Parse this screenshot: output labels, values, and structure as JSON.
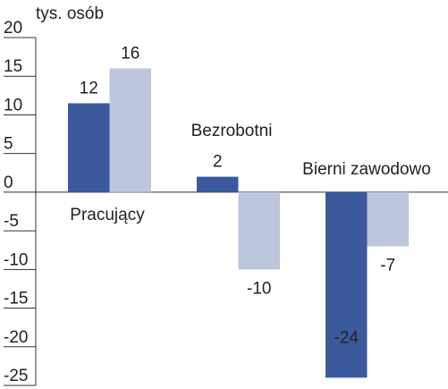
{
  "chart_data": {
    "type": "bar",
    "y_label": "tys. osób",
    "categories": [
      "Pracujący",
      "Bezrobotni",
      "Bierni zawodowo"
    ],
    "series": [
      {
        "color": "#3b5a9d",
        "values": [
          11.5,
          2,
          -24
        ],
        "value_labels": [
          "12",
          "2",
          "-24"
        ]
      },
      {
        "color": "#bcc6dc",
        "values": [
          16,
          -10,
          -7
        ]
      }
    ],
    "ylim": [
      -25,
      20
    ],
    "yticks": [
      -25,
      -20,
      -15,
      -10,
      -5,
      0,
      5,
      10,
      15,
      20
    ]
  }
}
